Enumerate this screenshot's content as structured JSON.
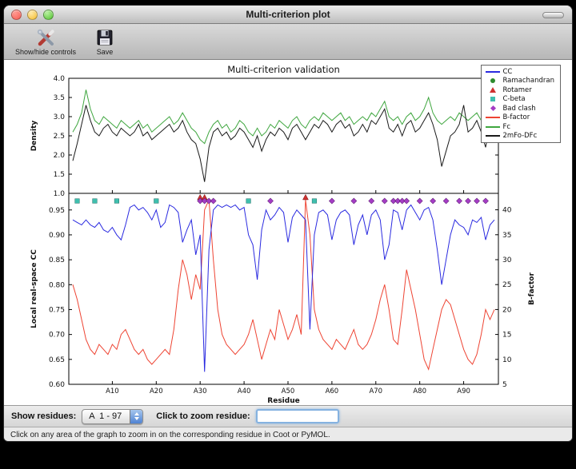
{
  "window": {
    "title": "Multi-criterion plot"
  },
  "toolbar": {
    "items": [
      {
        "label": "Show/hide controls",
        "icon": "tools-icon"
      },
      {
        "label": "Save",
        "icon": "save-icon"
      }
    ]
  },
  "controls": {
    "show_residues_label": "Show residues:",
    "residue_range_value": "A  1 - 97",
    "zoom_label": "Click to zoom residue:",
    "zoom_input_value": ""
  },
  "status_bar": {
    "text": "Click on any area of the graph to zoom in on the corresponding residue in Coot or PyMOL."
  },
  "ui_colors": {
    "accent_blue": "#4f82d2",
    "focus_ring": "#85b2e0",
    "figure_bg": "#ffffff"
  },
  "chart_data": {
    "type": "line",
    "title": "Multi-criterion validation",
    "xlabel": "Residue",
    "x_range": [
      1,
      97
    ],
    "grid": false,
    "legend_position": "upper_right",
    "x_ticks": [
      {
        "value": 10,
        "label": "A10"
      },
      {
        "value": 20,
        "label": "A20"
      },
      {
        "value": 30,
        "label": "A30"
      },
      {
        "value": 40,
        "label": "A40"
      },
      {
        "value": 50,
        "label": "A50"
      },
      {
        "value": 60,
        "label": "A60"
      },
      {
        "value": 70,
        "label": "A70"
      },
      {
        "value": 80,
        "label": "A80"
      },
      {
        "value": 90,
        "label": "A90"
      }
    ],
    "top_panel": {
      "ylabel": "Density",
      "ylim": [
        1.0,
        4.0
      ],
      "yticks": [
        1.0,
        1.5,
        2.0,
        2.5,
        3.0,
        3.5,
        4.0
      ],
      "series": [
        {
          "name": "Fc",
          "color": "#3fa63f",
          "values": [
            2.6,
            2.8,
            3.1,
            3.7,
            3.2,
            2.9,
            2.8,
            3.0,
            2.9,
            2.8,
            2.7,
            2.9,
            2.8,
            2.7,
            2.8,
            2.9,
            2.7,
            2.8,
            2.6,
            2.7,
            2.8,
            2.9,
            3.0,
            2.8,
            2.9,
            3.1,
            2.9,
            2.7,
            2.6,
            2.4,
            2.3,
            2.6,
            2.8,
            2.9,
            2.7,
            2.8,
            2.6,
            2.7,
            2.9,
            2.8,
            2.6,
            2.5,
            2.7,
            2.5,
            2.6,
            2.8,
            2.7,
            2.9,
            2.8,
            2.7,
            2.9,
            3.0,
            2.8,
            2.7,
            2.9,
            3.0,
            2.9,
            3.1,
            3.0,
            2.9,
            3.0,
            3.1,
            2.9,
            3.0,
            2.8,
            2.9,
            3.0,
            2.9,
            3.1,
            3.0,
            3.2,
            3.4,
            3.0,
            2.9,
            3.0,
            2.8,
            3.0,
            3.1,
            2.9,
            3.0,
            3.2,
            3.5,
            3.1,
            2.9,
            2.8,
            2.9,
            3.0,
            2.9,
            3.1,
            3.0,
            2.9,
            3.0,
            3.1,
            2.9,
            2.5,
            3.0,
            3.3
          ]
        },
        {
          "name": "2mFo-DFc",
          "color": "#1a1a1a",
          "values": [
            1.85,
            2.3,
            2.8,
            3.3,
            2.9,
            2.6,
            2.5,
            2.7,
            2.8,
            2.6,
            2.5,
            2.7,
            2.6,
            2.5,
            2.6,
            2.8,
            2.5,
            2.6,
            2.4,
            2.5,
            2.6,
            2.7,
            2.8,
            2.6,
            2.7,
            2.9,
            2.6,
            2.4,
            2.3,
            1.9,
            1.3,
            2.2,
            2.6,
            2.7,
            2.5,
            2.6,
            2.4,
            2.5,
            2.7,
            2.6,
            2.4,
            2.2,
            2.5,
            2.1,
            2.4,
            2.6,
            2.5,
            2.7,
            2.6,
            2.4,
            2.7,
            2.8,
            2.6,
            2.4,
            2.6,
            2.8,
            2.7,
            2.9,
            2.8,
            2.6,
            2.8,
            2.9,
            2.7,
            2.8,
            2.5,
            2.6,
            2.8,
            2.6,
            2.9,
            2.8,
            3.0,
            3.2,
            2.7,
            2.6,
            2.8,
            2.5,
            2.8,
            2.9,
            2.6,
            2.7,
            2.9,
            3.1,
            2.8,
            2.4,
            1.7,
            2.1,
            2.5,
            2.6,
            2.8,
            3.3,
            2.6,
            2.7,
            2.9,
            2.6,
            2.2,
            2.8,
            3.1
          ]
        }
      ]
    },
    "bottom_panel": {
      "ylabel_left": "Local real-space CC",
      "ylim_left": [
        0.6,
        0.9833
      ],
      "yticks_left": [
        0.6,
        0.65,
        0.7,
        0.75,
        0.8,
        0.85,
        0.9,
        0.95
      ],
      "ylabel_right": "B-factor",
      "ylim_right": [
        5,
        43.3
      ],
      "yticks_right": [
        5,
        10,
        15,
        20,
        25,
        30,
        35,
        40
      ],
      "series": [
        {
          "name": "CC",
          "axis": "left",
          "color": "#2a2ae0",
          "values": [
            0.93,
            0.925,
            0.92,
            0.93,
            0.92,
            0.915,
            0.925,
            0.91,
            0.905,
            0.915,
            0.9,
            0.89,
            0.92,
            0.955,
            0.96,
            0.95,
            0.955,
            0.945,
            0.93,
            0.95,
            0.915,
            0.925,
            0.96,
            0.955,
            0.945,
            0.885,
            0.91,
            0.93,
            0.86,
            0.9,
            0.625,
            0.87,
            0.95,
            0.96,
            0.955,
            0.96,
            0.955,
            0.96,
            0.95,
            0.955,
            0.9,
            0.88,
            0.81,
            0.91,
            0.95,
            0.93,
            0.94,
            0.955,
            0.945,
            0.885,
            0.935,
            0.95,
            0.94,
            0.93,
            0.71,
            0.9,
            0.945,
            0.95,
            0.94,
            0.89,
            0.93,
            0.945,
            0.95,
            0.94,
            0.88,
            0.92,
            0.94,
            0.9,
            0.94,
            0.95,
            0.93,
            0.85,
            0.88,
            0.95,
            0.945,
            0.91,
            0.95,
            0.96,
            0.945,
            0.93,
            0.95,
            0.955,
            0.93,
            0.87,
            0.8,
            0.85,
            0.9,
            0.93,
            0.92,
            0.915,
            0.9,
            0.93,
            0.925,
            0.935,
            0.89,
            0.92,
            0.93
          ]
        },
        {
          "name": "B-factor",
          "axis": "right",
          "color": "#ee4433",
          "values": [
            25,
            22,
            18,
            14,
            12,
            11,
            13,
            12,
            11,
            13,
            12,
            15,
            16,
            14,
            12,
            11,
            12,
            10,
            9,
            10,
            11,
            12,
            11,
            16,
            24,
            30,
            27,
            22,
            27,
            24,
            40,
            42,
            30,
            20,
            15,
            13,
            12,
            11,
            12,
            13,
            15,
            18,
            14,
            10,
            13,
            16,
            14,
            20,
            17,
            14,
            16,
            19,
            15,
            42,
            35,
            20,
            16,
            14,
            13,
            12,
            14,
            13,
            12,
            14,
            16,
            13,
            12,
            13,
            15,
            18,
            22,
            25,
            20,
            14,
            13,
            20,
            28,
            24,
            20,
            15,
            10,
            8,
            12,
            16,
            20,
            22,
            21,
            18,
            15,
            12,
            10,
            9,
            11,
            15,
            20,
            18,
            20
          ]
        }
      ],
      "markers": [
        {
          "name": "Rotamer",
          "shape": "triangle",
          "color": "#d03030",
          "y": 0.975,
          "x": [
            30,
            31,
            54
          ]
        },
        {
          "name": "C-beta",
          "shape": "square",
          "color": "#3fbfae",
          "y": 0.968,
          "x": [
            2,
            6,
            11,
            20,
            41,
            56
          ]
        },
        {
          "name": "Bad clash",
          "shape": "diamond",
          "color": "#a43cc4",
          "y": 0.968,
          "x": [
            30,
            31,
            32,
            33,
            46,
            60,
            65,
            69,
            72,
            74,
            75,
            76,
            77,
            80,
            83,
            86,
            89,
            91,
            93,
            95
          ]
        },
        {
          "name": "Ramachandran",
          "shape": "circle",
          "color": "#2e8b2e",
          "y": 0.968,
          "x": []
        }
      ]
    },
    "legend": [
      {
        "label": "CC",
        "type": "line",
        "color": "#2a2ae0"
      },
      {
        "label": "Ramachandran",
        "type": "circle",
        "color": "#2e8b2e"
      },
      {
        "label": "Rotamer",
        "type": "triangle",
        "color": "#d03030"
      },
      {
        "label": "C-beta",
        "type": "square",
        "color": "#3fbfae"
      },
      {
        "label": "Bad clash",
        "type": "diamond",
        "color": "#a43cc4"
      },
      {
        "label": "B-factor",
        "type": "line",
        "color": "#ee4433"
      },
      {
        "label": "Fc",
        "type": "line",
        "color": "#3fa63f"
      },
      {
        "label": "2mFo-DFc",
        "type": "line",
        "color": "#1a1a1a"
      }
    ]
  }
}
